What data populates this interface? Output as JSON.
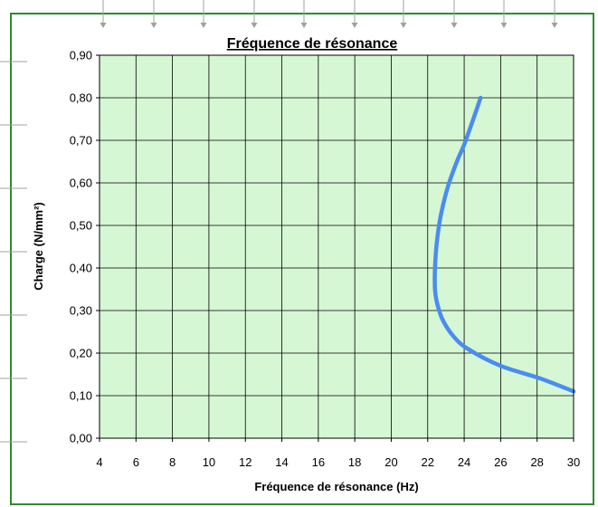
{
  "colors": {
    "plot_background": "#d6f7d4",
    "frame_border": "#2e8b2e",
    "series_line": "#4a8cf0",
    "grid": "#000000",
    "guide_arrows": "#a0a0a0"
  },
  "chart_data": {
    "type": "line",
    "title": "Fréquence de résonance",
    "xlabel": "Fréquence de résonance (Hz)",
    "ylabel": "Charge (N/mm²)",
    "xlim": [
      4,
      30
    ],
    "ylim": [
      0.0,
      0.9
    ],
    "x_ticks": [
      "4",
      "6",
      "8",
      "10",
      "12",
      "14",
      "16",
      "18",
      "20",
      "22",
      "24",
      "26",
      "28",
      "30"
    ],
    "y_ticks": [
      "0,00",
      "0,10",
      "0,20",
      "0,30",
      "0,40",
      "0,50",
      "0,60",
      "0,70",
      "0,80",
      "0,90"
    ],
    "grid": true,
    "legend": "none",
    "series": [
      {
        "x": [
          30.0,
          28.2,
          26.0,
          24.2,
          23.4,
          22.8,
          22.5,
          22.4,
          22.4,
          22.5,
          22.7,
          23.1,
          23.6,
          24.0,
          24.5,
          24.9
        ],
        "y": [
          0.11,
          0.14,
          0.17,
          0.21,
          0.24,
          0.28,
          0.32,
          0.35,
          0.4,
          0.46,
          0.52,
          0.59,
          0.65,
          0.69,
          0.75,
          0.8
        ]
      }
    ]
  }
}
